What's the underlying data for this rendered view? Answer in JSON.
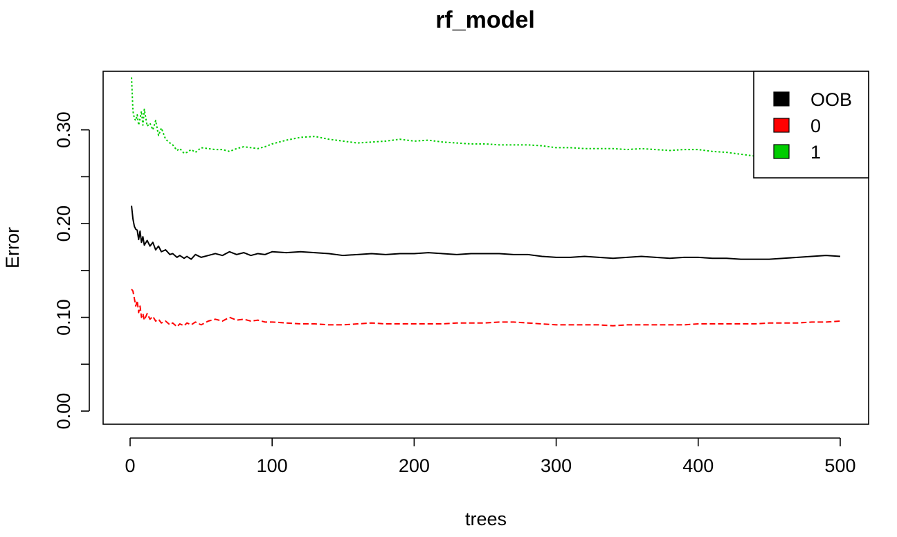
{
  "chart_data": {
    "type": "line",
    "title": "rf_model",
    "xlabel": "trees",
    "ylabel": "Error",
    "xlim": [
      1,
      500
    ],
    "ylim": [
      0.0,
      0.35
    ],
    "x_ticks": [
      {
        "value": 0,
        "label": "0"
      },
      {
        "value": 100,
        "label": "100"
      },
      {
        "value": 200,
        "label": "200"
      },
      {
        "value": 300,
        "label": "300"
      },
      {
        "value": 400,
        "label": "400"
      },
      {
        "value": 500,
        "label": "500"
      }
    ],
    "y_ticks": [
      {
        "value": 0.0,
        "label": "0.00"
      },
      {
        "value": 0.05,
        "label": ""
      },
      {
        "value": 0.1,
        "label": "0.10"
      },
      {
        "value": 0.15,
        "label": ""
      },
      {
        "value": 0.2,
        "label": "0.20"
      },
      {
        "value": 0.25,
        "label": ""
      },
      {
        "value": 0.3,
        "label": "0.30"
      }
    ],
    "grid": false,
    "legend_position": "top-right",
    "legend": [
      {
        "label": "OOB",
        "color": "#000000"
      },
      {
        "label": "0",
        "color": "#ff0000"
      },
      {
        "label": "1",
        "color": "#00cd00"
      }
    ],
    "series": [
      {
        "name": "OOB",
        "color": "#000000",
        "dash": "solid",
        "points": [
          [
            1,
            0.219
          ],
          [
            2,
            0.205
          ],
          [
            3,
            0.197
          ],
          [
            4,
            0.194
          ],
          [
            5,
            0.193
          ],
          [
            6,
            0.183
          ],
          [
            7,
            0.192
          ],
          [
            8,
            0.18
          ],
          [
            9,
            0.186
          ],
          [
            10,
            0.177
          ],
          [
            12,
            0.182
          ],
          [
            14,
            0.176
          ],
          [
            16,
            0.18
          ],
          [
            18,
            0.172
          ],
          [
            20,
            0.176
          ],
          [
            22,
            0.17
          ],
          [
            25,
            0.172
          ],
          [
            28,
            0.167
          ],
          [
            30,
            0.168
          ],
          [
            33,
            0.164
          ],
          [
            35,
            0.166
          ],
          [
            38,
            0.163
          ],
          [
            40,
            0.165
          ],
          [
            43,
            0.162
          ],
          [
            46,
            0.167
          ],
          [
            50,
            0.164
          ],
          [
            55,
            0.166
          ],
          [
            60,
            0.168
          ],
          [
            65,
            0.166
          ],
          [
            70,
            0.17
          ],
          [
            75,
            0.167
          ],
          [
            80,
            0.169
          ],
          [
            85,
            0.166
          ],
          [
            90,
            0.168
          ],
          [
            95,
            0.167
          ],
          [
            100,
            0.17
          ],
          [
            110,
            0.169
          ],
          [
            120,
            0.17
          ],
          [
            130,
            0.169
          ],
          [
            140,
            0.168
          ],
          [
            150,
            0.166
          ],
          [
            160,
            0.167
          ],
          [
            170,
            0.168
          ],
          [
            180,
            0.167
          ],
          [
            190,
            0.168
          ],
          [
            200,
            0.168
          ],
          [
            210,
            0.169
          ],
          [
            220,
            0.168
          ],
          [
            230,
            0.167
          ],
          [
            240,
            0.168
          ],
          [
            250,
            0.168
          ],
          [
            260,
            0.168
          ],
          [
            270,
            0.167
          ],
          [
            280,
            0.167
          ],
          [
            290,
            0.165
          ],
          [
            300,
            0.164
          ],
          [
            310,
            0.164
          ],
          [
            320,
            0.165
          ],
          [
            330,
            0.164
          ],
          [
            340,
            0.163
          ],
          [
            350,
            0.164
          ],
          [
            360,
            0.165
          ],
          [
            370,
            0.164
          ],
          [
            380,
            0.163
          ],
          [
            390,
            0.164
          ],
          [
            400,
            0.164
          ],
          [
            410,
            0.163
          ],
          [
            420,
            0.163
          ],
          [
            430,
            0.162
          ],
          [
            440,
            0.162
          ],
          [
            450,
            0.162
          ],
          [
            460,
            0.163
          ],
          [
            470,
            0.164
          ],
          [
            480,
            0.165
          ],
          [
            490,
            0.166
          ],
          [
            500,
            0.165
          ]
        ]
      },
      {
        "name": "0",
        "color": "#ff0000",
        "dash": "dashed",
        "points": [
          [
            1,
            0.13
          ],
          [
            2,
            0.128
          ],
          [
            3,
            0.12
          ],
          [
            4,
            0.112
          ],
          [
            5,
            0.118
          ],
          [
            6,
            0.105
          ],
          [
            7,
            0.112
          ],
          [
            8,
            0.1
          ],
          [
            9,
            0.104
          ],
          [
            10,
            0.097
          ],
          [
            12,
            0.104
          ],
          [
            14,
            0.098
          ],
          [
            16,
            0.101
          ],
          [
            18,
            0.096
          ],
          [
            20,
            0.098
          ],
          [
            22,
            0.094
          ],
          [
            25,
            0.096
          ],
          [
            28,
            0.092
          ],
          [
            30,
            0.094
          ],
          [
            33,
            0.09
          ],
          [
            35,
            0.093
          ],
          [
            38,
            0.091
          ],
          [
            40,
            0.094
          ],
          [
            43,
            0.092
          ],
          [
            46,
            0.095
          ],
          [
            50,
            0.092
          ],
          [
            55,
            0.096
          ],
          [
            60,
            0.098
          ],
          [
            65,
            0.096
          ],
          [
            70,
            0.1
          ],
          [
            75,
            0.097
          ],
          [
            80,
            0.098
          ],
          [
            85,
            0.096
          ],
          [
            90,
            0.097
          ],
          [
            95,
            0.095
          ],
          [
            100,
            0.095
          ],
          [
            110,
            0.094
          ],
          [
            120,
            0.093
          ],
          [
            130,
            0.093
          ],
          [
            140,
            0.092
          ],
          [
            150,
            0.092
          ],
          [
            160,
            0.093
          ],
          [
            170,
            0.094
          ],
          [
            180,
            0.093
          ],
          [
            190,
            0.093
          ],
          [
            200,
            0.093
          ],
          [
            210,
            0.093
          ],
          [
            220,
            0.093
          ],
          [
            230,
            0.094
          ],
          [
            240,
            0.094
          ],
          [
            250,
            0.094
          ],
          [
            260,
            0.095
          ],
          [
            270,
            0.095
          ],
          [
            280,
            0.094
          ],
          [
            290,
            0.093
          ],
          [
            300,
            0.092
          ],
          [
            310,
            0.092
          ],
          [
            320,
            0.092
          ],
          [
            330,
            0.092
          ],
          [
            340,
            0.091
          ],
          [
            350,
            0.092
          ],
          [
            360,
            0.092
          ],
          [
            370,
            0.092
          ],
          [
            380,
            0.092
          ],
          [
            390,
            0.092
          ],
          [
            400,
            0.093
          ],
          [
            410,
            0.093
          ],
          [
            420,
            0.093
          ],
          [
            430,
            0.093
          ],
          [
            440,
            0.093
          ],
          [
            450,
            0.094
          ],
          [
            460,
            0.094
          ],
          [
            470,
            0.094
          ],
          [
            480,
            0.095
          ],
          [
            490,
            0.095
          ],
          [
            500,
            0.096
          ]
        ]
      },
      {
        "name": "1",
        "color": "#00cd00",
        "dash": "dotted",
        "points": [
          [
            1,
            0.356
          ],
          [
            2,
            0.32
          ],
          [
            3,
            0.312
          ],
          [
            4,
            0.31
          ],
          [
            5,
            0.316
          ],
          [
            6,
            0.305
          ],
          [
            7,
            0.312
          ],
          [
            8,
            0.32
          ],
          [
            9,
            0.305
          ],
          [
            10,
            0.322
          ],
          [
            12,
            0.304
          ],
          [
            14,
            0.307
          ],
          [
            16,
            0.3
          ],
          [
            18,
            0.31
          ],
          [
            20,
            0.294
          ],
          [
            22,
            0.302
          ],
          [
            25,
            0.29
          ],
          [
            28,
            0.286
          ],
          [
            30,
            0.284
          ],
          [
            33,
            0.278
          ],
          [
            35,
            0.28
          ],
          [
            38,
            0.275
          ],
          [
            40,
            0.276
          ],
          [
            43,
            0.279
          ],
          [
            46,
            0.276
          ],
          [
            50,
            0.281
          ],
          [
            55,
            0.28
          ],
          [
            60,
            0.279
          ],
          [
            65,
            0.279
          ],
          [
            70,
            0.277
          ],
          [
            75,
            0.28
          ],
          [
            80,
            0.282
          ],
          [
            85,
            0.281
          ],
          [
            90,
            0.28
          ],
          [
            95,
            0.282
          ],
          [
            100,
            0.285
          ],
          [
            110,
            0.289
          ],
          [
            120,
            0.292
          ],
          [
            130,
            0.293
          ],
          [
            140,
            0.29
          ],
          [
            150,
            0.288
          ],
          [
            160,
            0.286
          ],
          [
            170,
            0.287
          ],
          [
            180,
            0.288
          ],
          [
            190,
            0.29
          ],
          [
            200,
            0.288
          ],
          [
            210,
            0.289
          ],
          [
            220,
            0.287
          ],
          [
            230,
            0.286
          ],
          [
            240,
            0.285
          ],
          [
            250,
            0.285
          ],
          [
            260,
            0.284
          ],
          [
            270,
            0.284
          ],
          [
            280,
            0.284
          ],
          [
            290,
            0.283
          ],
          [
            300,
            0.281
          ],
          [
            310,
            0.281
          ],
          [
            320,
            0.28
          ],
          [
            330,
            0.28
          ],
          [
            340,
            0.28
          ],
          [
            350,
            0.279
          ],
          [
            360,
            0.28
          ],
          [
            370,
            0.279
          ],
          [
            380,
            0.278
          ],
          [
            390,
            0.279
          ],
          [
            400,
            0.279
          ],
          [
            410,
            0.277
          ],
          [
            420,
            0.276
          ],
          [
            430,
            0.274
          ],
          [
            440,
            0.272
          ],
          [
            450,
            0.271
          ],
          [
            460,
            0.27
          ],
          [
            470,
            0.271
          ],
          [
            480,
            0.27
          ],
          [
            490,
            0.271
          ],
          [
            500,
            0.27
          ]
        ]
      }
    ]
  }
}
